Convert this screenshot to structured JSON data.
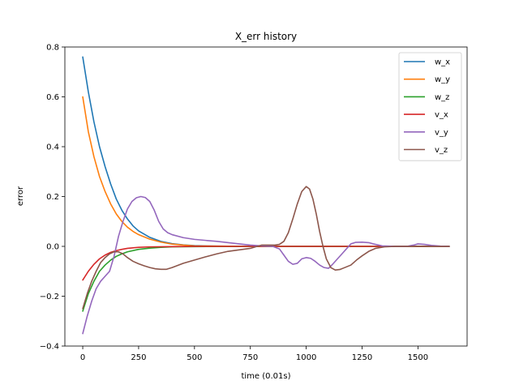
{
  "chart_data": {
    "type": "line",
    "title": "X_err history",
    "xlabel": "time (0.01s)",
    "ylabel": "error",
    "xlim": [
      -80,
      1720
    ],
    "ylim": [
      -0.4,
      0.8
    ],
    "xticks": [
      0,
      250,
      500,
      750,
      1000,
      1250,
      1500
    ],
    "yticks": [
      -0.4,
      -0.2,
      0.0,
      0.2,
      0.4,
      0.6,
      0.8
    ],
    "xtick_labels": [
      "0",
      "250",
      "500",
      "750",
      "1000",
      "1250",
      "1500"
    ],
    "ytick_labels": [
      "−0.4",
      "−0.2",
      "0.0",
      "0.2",
      "0.4",
      "0.6",
      "0.8"
    ],
    "grid": false,
    "legend_position": "top-right",
    "series": [
      {
        "name": "w_x",
        "color": "#1f77b4",
        "points": [
          [
            0,
            0.76
          ],
          [
            25,
            0.62
          ],
          [
            50,
            0.5
          ],
          [
            75,
            0.4
          ],
          [
            100,
            0.32
          ],
          [
            125,
            0.25
          ],
          [
            150,
            0.19
          ],
          [
            175,
            0.145
          ],
          [
            200,
            0.11
          ],
          [
            225,
            0.082
          ],
          [
            250,
            0.062
          ],
          [
            300,
            0.036
          ],
          [
            350,
            0.02
          ],
          [
            400,
            0.011
          ],
          [
            450,
            0.006
          ],
          [
            500,
            0.003
          ],
          [
            600,
            0.001
          ],
          [
            750,
            0.0
          ],
          [
            1000,
            0.0
          ],
          [
            1250,
            0.0
          ],
          [
            1500,
            0.0
          ],
          [
            1640,
            0.0
          ]
        ]
      },
      {
        "name": "w_y",
        "color": "#ff7f0e",
        "points": [
          [
            0,
            0.6
          ],
          [
            25,
            0.46
          ],
          [
            50,
            0.36
          ],
          [
            75,
            0.28
          ],
          [
            100,
            0.22
          ],
          [
            125,
            0.17
          ],
          [
            150,
            0.13
          ],
          [
            175,
            0.1
          ],
          [
            200,
            0.077
          ],
          [
            225,
            0.06
          ],
          [
            250,
            0.047
          ],
          [
            300,
            0.029
          ],
          [
            350,
            0.017
          ],
          [
            400,
            0.009
          ],
          [
            450,
            0.005
          ],
          [
            500,
            0.002
          ],
          [
            600,
            0.001
          ],
          [
            750,
            0.0
          ],
          [
            1000,
            0.0
          ],
          [
            1250,
            0.0
          ],
          [
            1500,
            0.0
          ],
          [
            1640,
            0.0
          ]
        ]
      },
      {
        "name": "w_z",
        "color": "#2ca02c",
        "points": [
          [
            0,
            -0.26
          ],
          [
            25,
            -0.19
          ],
          [
            50,
            -0.14
          ],
          [
            75,
            -0.1
          ],
          [
            100,
            -0.075
          ],
          [
            125,
            -0.055
          ],
          [
            150,
            -0.04
          ],
          [
            175,
            -0.03
          ],
          [
            200,
            -0.022
          ],
          [
            250,
            -0.012
          ],
          [
            300,
            -0.007
          ],
          [
            350,
            -0.004
          ],
          [
            400,
            -0.002
          ],
          [
            500,
            -0.001
          ],
          [
            750,
            0.0
          ],
          [
            1000,
            0.0
          ],
          [
            1250,
            0.0
          ],
          [
            1500,
            0.0
          ],
          [
            1640,
            0.0
          ]
        ]
      },
      {
        "name": "v_x",
        "color": "#d62728",
        "points": [
          [
            0,
            -0.135
          ],
          [
            25,
            -0.1
          ],
          [
            50,
            -0.072
          ],
          [
            75,
            -0.05
          ],
          [
            100,
            -0.035
          ],
          [
            125,
            -0.024
          ],
          [
            150,
            -0.017
          ],
          [
            175,
            -0.012
          ],
          [
            200,
            -0.008
          ],
          [
            250,
            -0.004
          ],
          [
            300,
            -0.002
          ],
          [
            400,
            -0.001
          ],
          [
            500,
            0.0
          ],
          [
            750,
            0.0
          ],
          [
            1000,
            0.0
          ],
          [
            1250,
            0.0
          ],
          [
            1500,
            0.0
          ],
          [
            1640,
            0.0
          ]
        ]
      },
      {
        "name": "v_y",
        "color": "#9467bd",
        "points": [
          [
            0,
            -0.35
          ],
          [
            20,
            -0.28
          ],
          [
            40,
            -0.22
          ],
          [
            60,
            -0.17
          ],
          [
            80,
            -0.14
          ],
          [
            100,
            -0.12
          ],
          [
            120,
            -0.1
          ],
          [
            140,
            -0.04
          ],
          [
            160,
            0.04
          ],
          [
            180,
            0.1
          ],
          [
            200,
            0.15
          ],
          [
            220,
            0.18
          ],
          [
            240,
            0.195
          ],
          [
            260,
            0.2
          ],
          [
            280,
            0.196
          ],
          [
            300,
            0.18
          ],
          [
            320,
            0.145
          ],
          [
            340,
            0.1
          ],
          [
            360,
            0.07
          ],
          [
            380,
            0.055
          ],
          [
            400,
            0.047
          ],
          [
            450,
            0.035
          ],
          [
            500,
            0.028
          ],
          [
            600,
            0.02
          ],
          [
            700,
            0.01
          ],
          [
            750,
            0.005
          ],
          [
            800,
            0.002
          ],
          [
            850,
            0.0
          ],
          [
            880,
            -0.01
          ],
          [
            900,
            -0.035
          ],
          [
            920,
            -0.06
          ],
          [
            940,
            -0.072
          ],
          [
            960,
            -0.068
          ],
          [
            980,
            -0.05
          ],
          [
            1000,
            -0.045
          ],
          [
            1020,
            -0.048
          ],
          [
            1040,
            -0.06
          ],
          [
            1060,
            -0.075
          ],
          [
            1080,
            -0.085
          ],
          [
            1100,
            -0.088
          ],
          [
            1120,
            -0.07
          ],
          [
            1140,
            -0.05
          ],
          [
            1160,
            -0.03
          ],
          [
            1180,
            -0.01
          ],
          [
            1200,
            0.01
          ],
          [
            1220,
            0.016
          ],
          [
            1250,
            0.017
          ],
          [
            1280,
            0.015
          ],
          [
            1300,
            0.01
          ],
          [
            1340,
            0.002
          ],
          [
            1400,
            0.0
          ],
          [
            1450,
            0.0
          ],
          [
            1480,
            0.005
          ],
          [
            1500,
            0.01
          ],
          [
            1530,
            0.008
          ],
          [
            1560,
            0.004
          ],
          [
            1600,
            0.001
          ],
          [
            1640,
            0.0
          ]
        ]
      },
      {
        "name": "v_z",
        "color": "#8c564b",
        "points": [
          [
            0,
            -0.25
          ],
          [
            20,
            -0.19
          ],
          [
            40,
            -0.14
          ],
          [
            60,
            -0.1
          ],
          [
            80,
            -0.065
          ],
          [
            100,
            -0.045
          ],
          [
            120,
            -0.03
          ],
          [
            140,
            -0.022
          ],
          [
            160,
            -0.022
          ],
          [
            180,
            -0.03
          ],
          [
            200,
            -0.045
          ],
          [
            225,
            -0.06
          ],
          [
            250,
            -0.07
          ],
          [
            275,
            -0.078
          ],
          [
            300,
            -0.085
          ],
          [
            325,
            -0.09
          ],
          [
            350,
            -0.092
          ],
          [
            375,
            -0.092
          ],
          [
            400,
            -0.085
          ],
          [
            450,
            -0.068
          ],
          [
            500,
            -0.055
          ],
          [
            550,
            -0.042
          ],
          [
            600,
            -0.03
          ],
          [
            650,
            -0.02
          ],
          [
            700,
            -0.014
          ],
          [
            750,
            -0.008
          ],
          [
            780,
            0.0
          ],
          [
            800,
            0.005
          ],
          [
            840,
            0.005
          ],
          [
            860,
            0.005
          ],
          [
            880,
            0.008
          ],
          [
            900,
            0.02
          ],
          [
            920,
            0.055
          ],
          [
            940,
            0.11
          ],
          [
            960,
            0.17
          ],
          [
            980,
            0.22
          ],
          [
            1000,
            0.24
          ],
          [
            1015,
            0.23
          ],
          [
            1030,
            0.19
          ],
          [
            1045,
            0.13
          ],
          [
            1060,
            0.06
          ],
          [
            1075,
            0.0
          ],
          [
            1090,
            -0.05
          ],
          [
            1110,
            -0.085
          ],
          [
            1130,
            -0.095
          ],
          [
            1150,
            -0.093
          ],
          [
            1170,
            -0.086
          ],
          [
            1200,
            -0.075
          ],
          [
            1225,
            -0.055
          ],
          [
            1250,
            -0.038
          ],
          [
            1280,
            -0.02
          ],
          [
            1310,
            -0.008
          ],
          [
            1350,
            -0.002
          ],
          [
            1400,
            0.0
          ],
          [
            1500,
            0.0
          ],
          [
            1640,
            0.0
          ]
        ]
      }
    ]
  }
}
